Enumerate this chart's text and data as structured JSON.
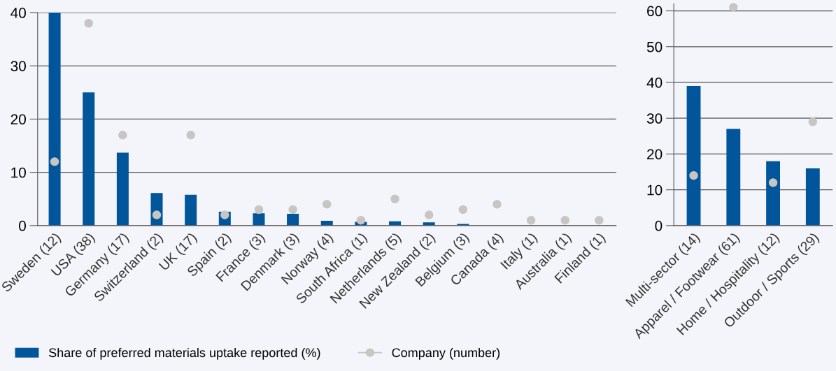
{
  "chart_data": [
    {
      "type": "bar",
      "categories": [
        "Sweden (12)",
        "USA (38)",
        "Germany (17)",
        "Switzerland (2)",
        "UK (17)",
        "Spain (2)",
        "France (3)",
        "Denmark (3)",
        "Norway (4)",
        "South Africa (1)",
        "Netherlands (5)",
        "New Zealand (2)",
        "Belgium (3)",
        "Canada (4)",
        "Italy (1)",
        "Australia (1)",
        "Finland (1)"
      ],
      "series": [
        {
          "name": "Share of preferred materials uptake reported (%)",
          "color": "#00559b",
          "values": [
            40,
            25,
            13.7,
            6.1,
            5.8,
            2.6,
            2.3,
            2.2,
            0.9,
            0.7,
            0.8,
            0.6,
            0.3,
            0,
            0,
            0,
            0
          ]
        },
        {
          "name": "Company (number)",
          "type": "scatter",
          "color": "#c8c6c4",
          "values": [
            12,
            38,
            17,
            2,
            17,
            2,
            3,
            3,
            4,
            1,
            5,
            2,
            3,
            4,
            1,
            1,
            1
          ]
        }
      ],
      "ylim": [
        0,
        40
      ],
      "yticks": [
        0,
        10,
        20,
        30,
        40
      ],
      "grid": "y",
      "legend": "bottom",
      "marker": "circle"
    },
    {
      "type": "bar",
      "categories": [
        "Multi-sector (14)",
        "Apparel / Footwear (61)",
        "Home / Hospitality (12)",
        "Outdoor / Sports (29)"
      ],
      "series": [
        {
          "color": "#00559b",
          "values": [
            39,
            27,
            18,
            16
          ]
        },
        {
          "type": "scatter",
          "color": "#c8c6c4",
          "values": [
            14,
            61,
            12,
            29
          ]
        }
      ],
      "ylim": [
        0,
        62
      ],
      "yticks": [
        0,
        10,
        20,
        30,
        40,
        50,
        60
      ],
      "grid": "y",
      "marker": "circle"
    }
  ]
}
